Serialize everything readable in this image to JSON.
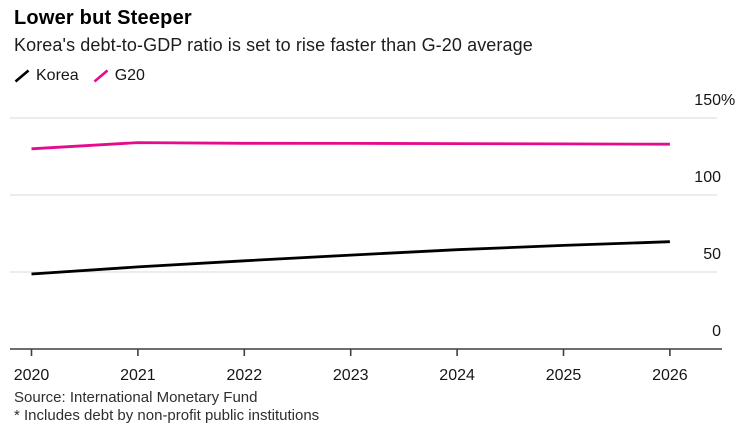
{
  "header": {
    "title": "Lower but Steeper",
    "subtitle": "Korea's debt-to-GDP ratio is set to rise faster than G-20 average"
  },
  "legend": {
    "items": [
      {
        "label": "Korea",
        "color": "#000000"
      },
      {
        "label": "G20",
        "color": "#e60b8e"
      }
    ]
  },
  "chart_data": {
    "type": "line",
    "x": [
      2020,
      2021,
      2022,
      2023,
      2024,
      2025,
      2026
    ],
    "xtick_labels": [
      "2020",
      "2021",
      "2022",
      "2023",
      "2024",
      "2025",
      "2026"
    ],
    "series": [
      {
        "name": "Korea",
        "color": "#000000",
        "values": [
          48.7,
          53.3,
          57.3,
          61.0,
          64.5,
          67.3,
          69.7
        ]
      },
      {
        "name": "G20",
        "color": "#e60b8e",
        "values": [
          130.0,
          134.0,
          133.6,
          133.5,
          133.4,
          133.2,
          133.0
        ]
      }
    ],
    "ylabel": "",
    "xlabel": "",
    "unit": "%",
    "ylim": [
      0,
      150
    ],
    "yticks": [
      0,
      50,
      100,
      150
    ],
    "grid": "horizontal",
    "legend_position": "top-left",
    "ytick_label_position": "right"
  },
  "footer": {
    "source": "Source: International Monetary Fund",
    "footnote": "* Includes debt by non-profit public institutions"
  },
  "colors": {
    "korea_line": "#000000",
    "g20_line": "#e60b8e",
    "gridline": "#dadada",
    "axis": "#3f3f3f",
    "text": "#161616"
  }
}
